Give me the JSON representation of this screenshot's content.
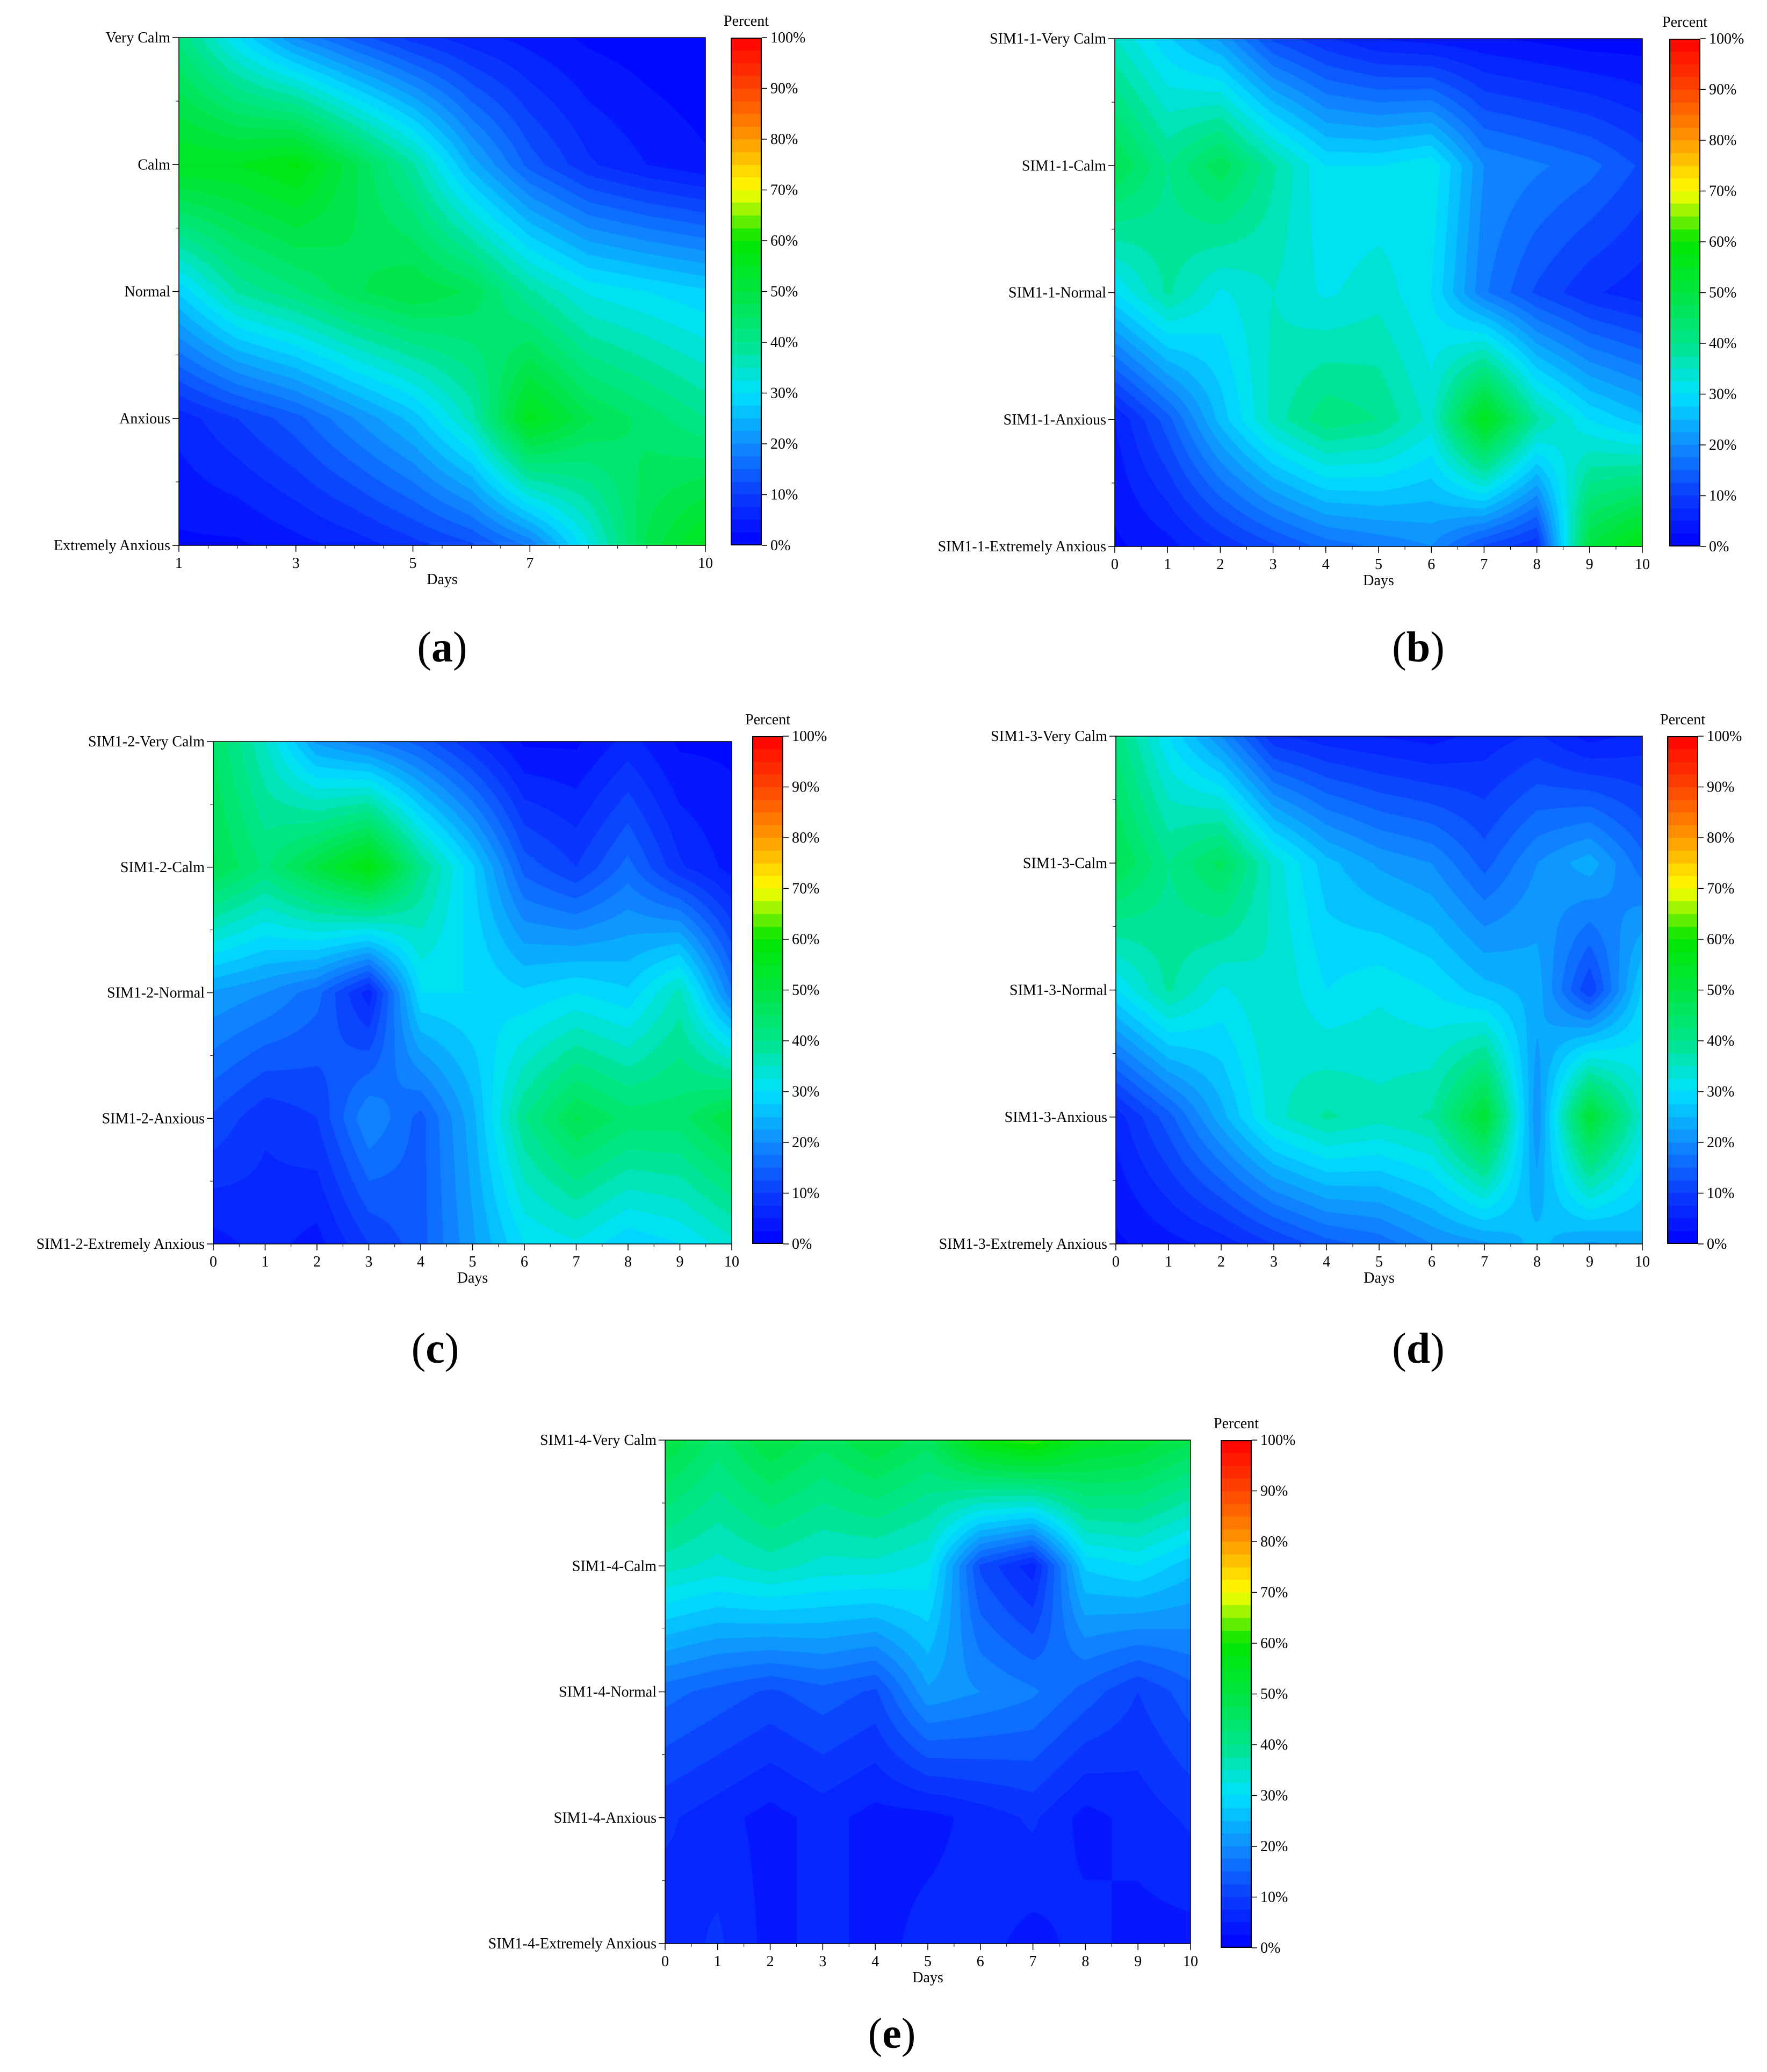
{
  "chart_data": [
    {
      "panel": "a",
      "type": "heatmap",
      "title": "",
      "xlabel": "Days",
      "ylabel": "",
      "x_ticks": [
        "1",
        "3",
        "5",
        "7",
        "10"
      ],
      "x_tick_values": [
        1,
        3,
        5,
        7,
        10
      ],
      "xlim": [
        1,
        10
      ],
      "y_categories": [
        "Very Calm",
        "Calm",
        "Normal",
        "Anxious",
        "Extremely Anxious"
      ],
      "x": [
        1,
        2,
        3,
        4,
        5,
        6,
        7,
        8,
        9,
        10
      ],
      "values": [
        [
          42,
          30,
          20,
          14,
          9,
          6,
          4,
          2,
          1,
          0
        ],
        [
          55,
          55,
          58,
          48,
          38,
          24,
          14,
          8,
          5,
          3
        ],
        [
          28,
          38,
          42,
          47,
          50,
          47,
          38,
          32,
          30,
          28
        ],
        [
          6,
          10,
          14,
          20,
          26,
          36,
          56,
          48,
          44,
          40
        ],
        [
          2,
          2,
          4,
          6,
          9,
          12,
          18,
          32,
          48,
          56
        ]
      ],
      "colorbar": {
        "title": "Percent",
        "ticks": [
          "0%",
          "10%",
          "20%",
          "30%",
          "40%",
          "50%",
          "60%",
          "70%",
          "80%",
          "90%",
          "100%"
        ]
      },
      "caption": "a"
    },
    {
      "panel": "b",
      "type": "heatmap",
      "title": "",
      "xlabel": "Days",
      "ylabel": "",
      "x_ticks": [
        "0",
        "1",
        "2",
        "3",
        "4",
        "5",
        "6",
        "7",
        "8",
        "9",
        "10"
      ],
      "x_tick_values": [
        0,
        1,
        2,
        3,
        4,
        5,
        6,
        7,
        8,
        9,
        10
      ],
      "xlim": [
        0,
        10
      ],
      "y_categories": [
        "SIM1-1-Very Calm",
        "SIM1-1-Calm",
        "SIM1-1-Normal",
        "SIM1-1-Anxious",
        "SIM1-1-Extremely Anxious"
      ],
      "x": [
        0,
        1,
        2,
        3,
        4,
        5,
        6,
        7,
        8,
        9,
        10
      ],
      "values": [
        [
          35,
          28,
          22,
          12,
          8,
          5,
          4,
          3,
          2,
          1,
          1
        ],
        [
          48,
          40,
          47,
          38,
          30,
          30,
          32,
          20,
          18,
          16,
          12
        ],
        [
          30,
          38,
          32,
          35,
          32,
          34,
          30,
          18,
          12,
          8,
          6
        ],
        [
          5,
          14,
          26,
          36,
          42,
          40,
          34,
          56,
          38,
          30,
          26
        ],
        [
          2,
          4,
          8,
          12,
          16,
          18,
          20,
          12,
          8,
          50,
          58
        ]
      ],
      "colorbar": {
        "title": "Percent",
        "ticks": [
          "0%",
          "10%",
          "20%",
          "30%",
          "40%",
          "50%",
          "60%",
          "70%",
          "80%",
          "90%",
          "100%"
        ]
      },
      "caption": "b"
    },
    {
      "panel": "c",
      "type": "heatmap",
      "title": "",
      "xlabel": "Days",
      "ylabel": "",
      "x_ticks": [
        "0",
        "1",
        "2",
        "3",
        "4",
        "5",
        "6",
        "7",
        "8",
        "9",
        "10"
      ],
      "x_tick_values": [
        0,
        1,
        2,
        3,
        4,
        5,
        6,
        7,
        8,
        9,
        10
      ],
      "xlim": [
        0,
        10
      ],
      "y_categories": [
        "SIM1-2-Very Calm",
        "SIM1-2-Calm",
        "SIM1-2-Normal",
        "SIM1-2-Anxious",
        "SIM1-2-Extremely Anxious"
      ],
      "x": [
        0,
        1,
        2,
        3,
        4,
        5,
        6,
        7,
        8,
        9,
        10
      ],
      "values": [
        [
          45,
          35,
          22,
          18,
          14,
          8,
          2,
          2,
          6,
          2,
          2
        ],
        [
          48,
          42,
          50,
          58,
          40,
          28,
          14,
          10,
          16,
          8,
          4
        ],
        [
          22,
          20,
          16,
          6,
          30,
          30,
          28,
          30,
          28,
          36,
          18
        ],
        [
          12,
          8,
          10,
          20,
          14,
          24,
          40,
          48,
          44,
          44,
          50
        ],
        [
          4,
          6,
          4,
          10,
          14,
          22,
          30,
          32,
          28,
          30,
          34
        ]
      ],
      "colorbar": {
        "title": "Percent",
        "ticks": [
          "0%",
          "10%",
          "20%",
          "30%",
          "40%",
          "50%",
          "60%",
          "70%",
          "80%",
          "90%",
          "100%"
        ]
      },
      "caption": "c"
    },
    {
      "panel": "d",
      "type": "heatmap",
      "title": "",
      "xlabel": "Days",
      "ylabel": "",
      "x_ticks": [
        "0",
        "1",
        "2",
        "3",
        "4",
        "5",
        "6",
        "7",
        "8",
        "9",
        "10"
      ],
      "x_tick_values": [
        0,
        1,
        2,
        3,
        4,
        5,
        6,
        7,
        8,
        9,
        10
      ],
      "xlim": [
        0,
        10
      ],
      "y_categories": [
        "SIM1-3-Very Calm",
        "SIM1-3-Calm",
        "SIM1-3-Normal",
        "SIM1-3-Anxious",
        "SIM1-3-Extremely Anxious"
      ],
      "x": [
        0,
        1,
        2,
        3,
        4,
        5,
        6,
        7,
        8,
        9,
        10
      ],
      "values": [
        [
          42,
          30,
          20,
          8,
          6,
          5,
          4,
          6,
          8,
          4,
          6
        ],
        [
          48,
          40,
          46,
          34,
          26,
          22,
          20,
          14,
          20,
          24,
          16
        ],
        [
          30,
          38,
          32,
          35,
          30,
          32,
          30,
          26,
          24,
          10,
          28
        ],
        [
          6,
          14,
          24,
          34,
          38,
          36,
          38,
          52,
          20,
          52,
          34
        ],
        [
          2,
          4,
          6,
          10,
          14,
          16,
          20,
          22,
          26,
          22,
          24
        ]
      ],
      "colorbar": {
        "title": "Percent",
        "ticks": [
          "0%",
          "10%",
          "20%",
          "30%",
          "40%",
          "50%",
          "60%",
          "70%",
          "80%",
          "90%",
          "100%"
        ]
      },
      "caption": "d"
    },
    {
      "panel": "e",
      "type": "heatmap",
      "title": "",
      "xlabel": "Days",
      "ylabel": "",
      "x_ticks": [
        "0",
        "1",
        "2",
        "3",
        "4",
        "5",
        "6",
        "7",
        "8",
        "9",
        "10"
      ],
      "x_tick_values": [
        0,
        1,
        2,
        3,
        4,
        5,
        6,
        7,
        8,
        9,
        10
      ],
      "xlim": [
        0,
        10
      ],
      "y_categories": [
        "SIM1-4-Very Calm",
        "SIM1-4-Calm",
        "SIM1-4-Normal",
        "SIM1-4-Anxious",
        "SIM1-4-Extremely Anxious"
      ],
      "x": [
        0,
        1,
        2,
        3,
        4,
        5,
        6,
        7,
        8,
        9,
        10
      ],
      "values": [
        [
          50,
          44,
          50,
          46,
          50,
          46,
          58,
          62,
          54,
          52,
          48
        ],
        [
          36,
          34,
          36,
          34,
          34,
          32,
          12,
          6,
          28,
          30,
          26
        ],
        [
          16,
          14,
          12,
          14,
          12,
          22,
          20,
          18,
          14,
          10,
          14
        ],
        [
          8,
          6,
          4,
          6,
          4,
          4,
          6,
          8,
          4,
          6,
          8
        ],
        [
          6,
          8,
          4,
          6,
          4,
          6,
          6,
          4,
          6,
          4,
          4
        ]
      ],
      "colorbar": {
        "title": "Percent",
        "ticks": [
          "0%",
          "10%",
          "20%",
          "30%",
          "40%",
          "50%",
          "60%",
          "70%",
          "80%",
          "90%",
          "100%"
        ]
      },
      "caption": "e"
    }
  ],
  "colorscale": [
    "#0000ff",
    "#0a3cff",
    "#0f8cff",
    "#00e1ff",
    "#00e68c",
    "#00e640",
    "#00e600",
    "#ffff00",
    "#ff9900",
    "#ff4400",
    "#ff0000"
  ]
}
